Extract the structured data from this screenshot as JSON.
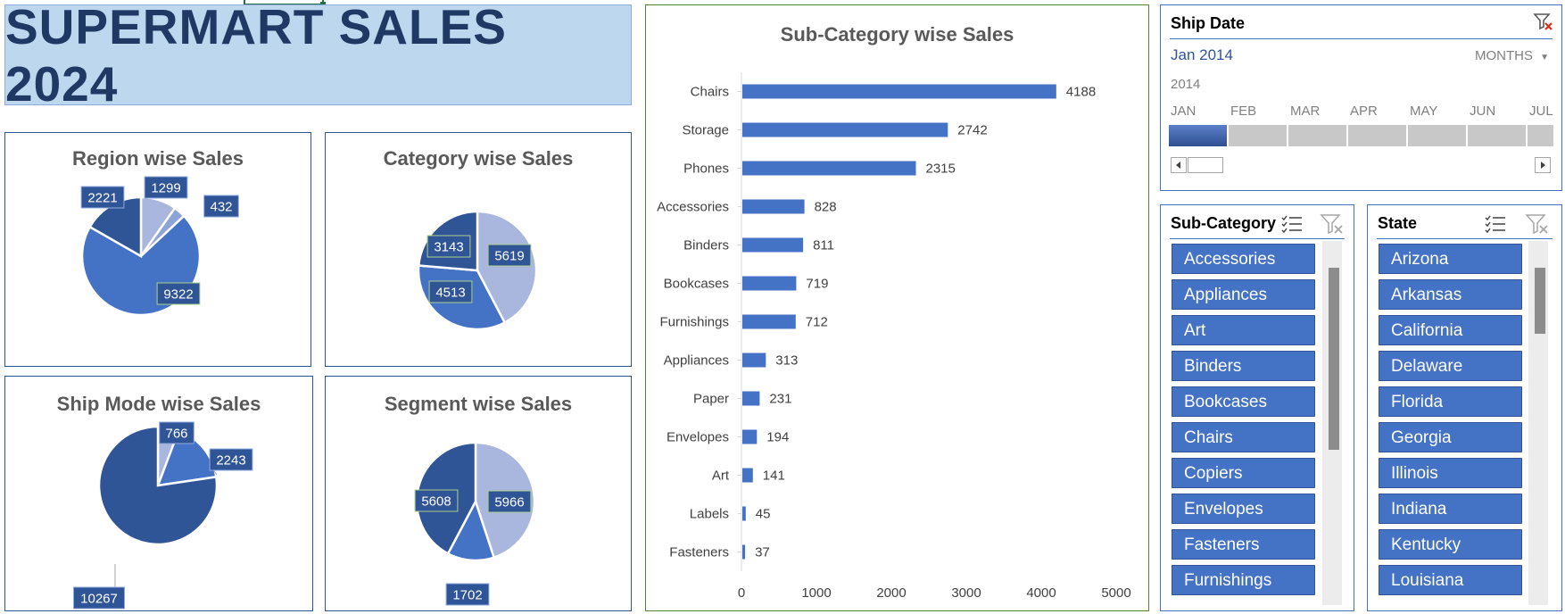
{
  "dashboard_title": "SUPERMART SALES 2024",
  "chart_data": [
    {
      "type": "pie",
      "title": "Region wise Sales",
      "values": [
        1299,
        432,
        9322,
        2221
      ],
      "colors": [
        "#a9b6de",
        "#8ea3d8",
        "#4472c4",
        "#2f5597"
      ]
    },
    {
      "type": "pie",
      "title": "Category wise Sales",
      "values": [
        5619,
        4513,
        3143
      ],
      "colors": [
        "#a9b6de",
        "#4472c4",
        "#2f5597"
      ]
    },
    {
      "type": "pie",
      "title": "Ship Mode wise Sales",
      "values": [
        766,
        2243,
        10267
      ],
      "colors": [
        "#a9b6de",
        "#4472c4",
        "#2f5597"
      ]
    },
    {
      "type": "pie",
      "title": "Segment wise Sales",
      "values": [
        5966,
        1702,
        5608
      ],
      "colors": [
        "#a9b6de",
        "#4472c4",
        "#2f5597"
      ]
    },
    {
      "type": "bar",
      "orientation": "horizontal",
      "title": "Sub-Category wise Sales",
      "categories": [
        "Chairs",
        "Storage",
        "Phones",
        "Accessories",
        "Binders",
        "Bookcases",
        "Furnishings",
        "Appliances",
        "Paper",
        "Envelopes",
        "Art",
        "Labels",
        "Fasteners"
      ],
      "values": [
        4188,
        2742,
        2315,
        828,
        811,
        719,
        712,
        313,
        231,
        194,
        141,
        45,
        37
      ],
      "xlim": [
        0,
        5000
      ],
      "xticks": [
        0,
        1000,
        2000,
        3000,
        4000,
        5000
      ],
      "color": "#4472c4",
      "grid": false
    }
  ],
  "timeline": {
    "title": "Ship Date",
    "selection": "Jan 2014",
    "level": "MONTHS",
    "year": "2014",
    "months": [
      "JAN",
      "FEB",
      "MAR",
      "APR",
      "MAY",
      "JUN",
      "JUL"
    ],
    "selected_index": 0
  },
  "subcategory_slicer": {
    "title": "Sub-Category",
    "items": [
      "Accessories",
      "Appliances",
      "Art",
      "Binders",
      "Bookcases",
      "Chairs",
      "Copiers",
      "Envelopes",
      "Fasteners",
      "Furnishings"
    ]
  },
  "state_slicer": {
    "title": "State",
    "items": [
      "Arizona",
      "Arkansas",
      "California",
      "Delaware",
      "Florida",
      "Georgia",
      "Illinois",
      "Indiana",
      "Kentucky",
      "Louisiana"
    ]
  }
}
